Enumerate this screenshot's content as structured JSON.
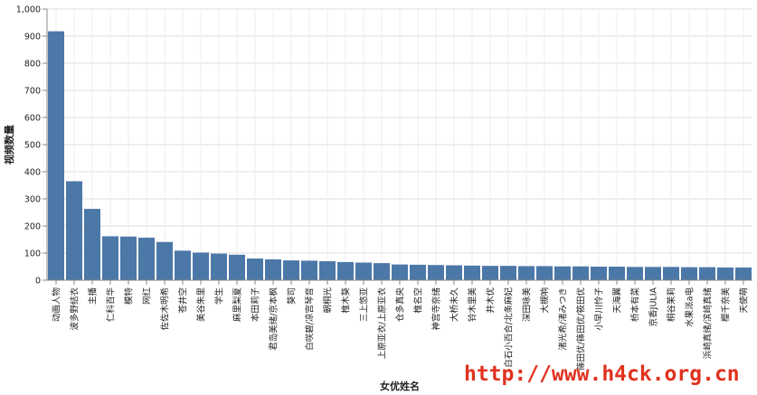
{
  "chart_data": {
    "type": "bar",
    "xlabel": "女优姓名",
    "ylabel": "视频数量",
    "ylim": [
      0,
      1000
    ],
    "yticks": [
      "0",
      "100",
      "200",
      "300",
      "400",
      "500",
      "600",
      "700",
      "800",
      "900",
      "1,000"
    ],
    "grid": true,
    "bar_color": "#4c78a8",
    "categories": [
      "动画人物",
      "波多野结衣",
      "主播",
      "仁科百华",
      "模特",
      "网红",
      "佐佐木明希",
      "苍井空",
      "美谷朱里",
      "学生",
      "麻里梨夏",
      "本田莉子",
      "君岛美绪/京本枫",
      "葵司",
      "白咲碧/凉宫琴音",
      "朝桐光",
      "椎木葵",
      "三上悠亚",
      "上原亚衣/上原亚衣",
      "仓多真央",
      "椎名空",
      "神宫寺奈绪",
      "大桥未久",
      "铃木里美",
      "井木优",
      "白石小百合/北条麻妃",
      "深田咏美",
      "大槻响",
      "渚光希/渚みつき",
      "篠田优/篠田优/筱田优",
      "小早川怜子",
      "天海翼",
      "桥本有菜",
      "京香JULIA",
      "桐谷茉莉",
      "水果派a电",
      "浜崎真绪/滨崎真绪",
      "樱千奈美",
      "天使萌"
    ],
    "values": [
      918,
      365,
      263,
      162,
      161,
      157,
      141,
      109,
      102,
      98,
      94,
      80,
      77,
      73,
      72,
      70,
      67,
      65,
      63,
      58,
      57,
      56,
      55,
      54,
      53,
      53,
      52,
      52,
      51,
      51,
      50,
      50,
      49,
      49,
      49,
      48,
      48,
      47,
      47
    ]
  },
  "watermark": "http://www.h4ck.org.cn"
}
